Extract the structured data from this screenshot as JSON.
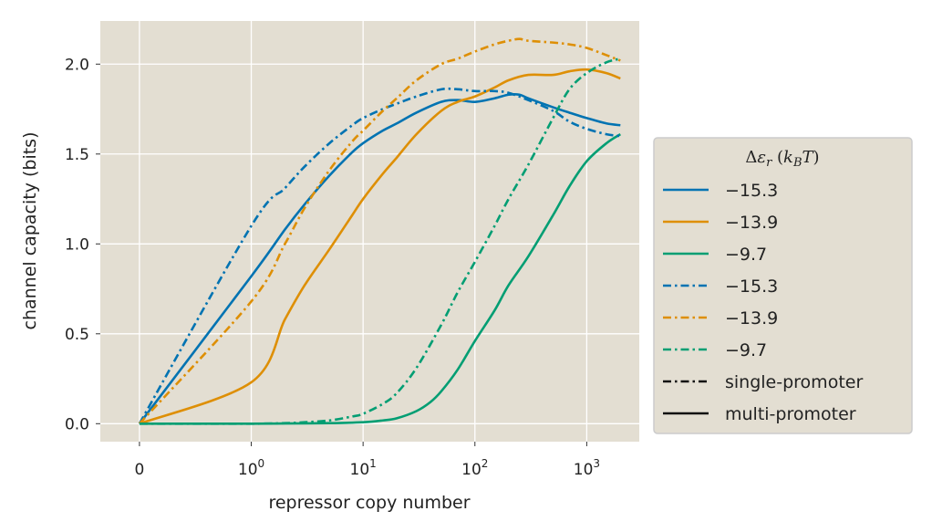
{
  "chart_data": {
    "type": "line",
    "xlabel": "repressor copy number",
    "ylabel": "channel capacity (bits)",
    "xscale": "symlog",
    "xlim": [
      -0.35,
      2950
    ],
    "ylim": [
      -0.1,
      2.24
    ],
    "grid": true,
    "x_ticks": [
      {
        "value": 0,
        "label": "0",
        "sup": ""
      },
      {
        "value": 1,
        "label": "10",
        "sup": "0"
      },
      {
        "value": 10,
        "label": "10",
        "sup": "1"
      },
      {
        "value": 100,
        "label": "10",
        "sup": "2"
      },
      {
        "value": 1000,
        "label": "10",
        "sup": "3"
      }
    ],
    "y_ticks": [
      {
        "value": 0.0,
        "label": "0.0"
      },
      {
        "value": 0.5,
        "label": "0.5"
      },
      {
        "value": 1.0,
        "label": "1.0"
      },
      {
        "value": 1.5,
        "label": "1.5"
      },
      {
        "value": 2.0,
        "label": "2.0"
      }
    ],
    "legend": {
      "title": "Δε_r (k_BT)",
      "title_parts": {
        "delta": "Δ",
        "eps": "ε",
        "r": "r",
        "open": " (",
        "k": "k",
        "B": "B",
        "T": "T",
        "close": ")"
      },
      "placement": "center-right outside",
      "entries": [
        {
          "label": "−15.3",
          "color": "#0173b2",
          "style": "solid"
        },
        {
          "label": "−13.9",
          "color": "#de8f05",
          "style": "solid"
        },
        {
          "label": "−9.7",
          "color": "#029e73",
          "style": "solid"
        },
        {
          "label": "−15.3",
          "color": "#0173b2",
          "style": "dashdot"
        },
        {
          "label": "−13.9",
          "color": "#de8f05",
          "style": "dashdot"
        },
        {
          "label": "−9.7",
          "color": "#029e73",
          "style": "dashdot"
        },
        {
          "label": "single-promoter",
          "color": "#111111",
          "style": "dashdot"
        },
        {
          "label": "multi-promoter",
          "color": "#111111",
          "style": "solid"
        }
      ]
    },
    "series": [
      {
        "name": "−15.3",
        "color": "#0173b2",
        "style": "solid",
        "x": [
          0,
          1,
          2,
          3,
          5,
          8,
          10,
          15,
          20,
          30,
          50,
          70,
          100,
          150,
          200,
          250,
          300,
          500,
          700,
          1000,
          1500,
          2000
        ],
        "y": [
          0,
          0.82,
          1.08,
          1.22,
          1.38,
          1.51,
          1.56,
          1.63,
          1.67,
          1.73,
          1.79,
          1.8,
          1.79,
          1.81,
          1.83,
          1.83,
          1.81,
          1.76,
          1.73,
          1.7,
          1.67,
          1.66
        ]
      },
      {
        "name": "−13.9",
        "color": "#de8f05",
        "style": "solid",
        "x": [
          0,
          1,
          2,
          3,
          5,
          8,
          10,
          15,
          20,
          30,
          50,
          70,
          100,
          150,
          200,
          300,
          500,
          700,
          1000,
          1500,
          2000
        ],
        "y": [
          0,
          0.23,
          0.58,
          0.77,
          0.97,
          1.16,
          1.25,
          1.39,
          1.48,
          1.61,
          1.74,
          1.79,
          1.82,
          1.87,
          1.91,
          1.94,
          1.94,
          1.96,
          1.97,
          1.95,
          1.92
        ]
      },
      {
        "name": "−9.7",
        "color": "#029e73",
        "style": "solid",
        "x": [
          0,
          1,
          2,
          5,
          10,
          15,
          20,
          30,
          40,
          50,
          70,
          100,
          150,
          200,
          300,
          500,
          700,
          1000,
          1500,
          2000
        ],
        "y": [
          0,
          0,
          0.001,
          0.003,
          0.008,
          0.018,
          0.03,
          0.07,
          0.12,
          0.18,
          0.3,
          0.46,
          0.63,
          0.77,
          0.93,
          1.16,
          1.32,
          1.46,
          1.56,
          1.61
        ]
      },
      {
        "name": "−15.3",
        "color": "#0173b2",
        "style": "dashdot",
        "x": [
          0,
          1,
          2,
          3,
          5,
          8,
          10,
          15,
          20,
          30,
          50,
          70,
          100,
          150,
          200,
          300,
          500,
          700,
          1000,
          1500,
          2000
        ],
        "y": [
          0,
          1.1,
          1.31,
          1.43,
          1.56,
          1.66,
          1.7,
          1.75,
          1.78,
          1.82,
          1.86,
          1.86,
          1.85,
          1.85,
          1.84,
          1.8,
          1.74,
          1.68,
          1.64,
          1.61,
          1.6
        ]
      },
      {
        "name": "−13.9",
        "color": "#de8f05",
        "style": "dashdot",
        "x": [
          0,
          1,
          2,
          3,
          5,
          8,
          10,
          15,
          20,
          30,
          50,
          70,
          100,
          150,
          200,
          250,
          300,
          500,
          700,
          1000,
          1500,
          2000
        ],
        "y": [
          0,
          0.68,
          1.0,
          1.2,
          1.41,
          1.57,
          1.63,
          1.74,
          1.81,
          1.91,
          2.0,
          2.03,
          2.07,
          2.11,
          2.13,
          2.14,
          2.13,
          2.12,
          2.11,
          2.09,
          2.05,
          2.02
        ]
      },
      {
        "name": "−9.7",
        "color": "#029e73",
        "style": "dashdot",
        "x": [
          0,
          1,
          2,
          3,
          5,
          8,
          10,
          15,
          20,
          30,
          50,
          70,
          100,
          150,
          200,
          300,
          500,
          700,
          1000,
          1500,
          2000
        ],
        "y": [
          0,
          0,
          0.003,
          0.008,
          0.018,
          0.04,
          0.055,
          0.11,
          0.17,
          0.31,
          0.55,
          0.73,
          0.9,
          1.1,
          1.25,
          1.44,
          1.7,
          1.86,
          1.95,
          2.01,
          2.03
        ]
      }
    ]
  }
}
